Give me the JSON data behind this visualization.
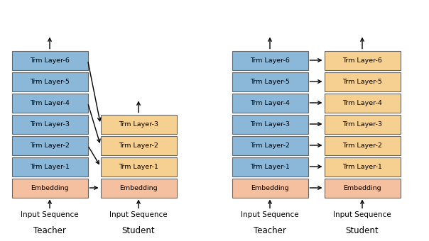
{
  "blue_color": "#8BB8D8",
  "orange_color": "#F5D090",
  "pink_color": "#F5C0A0",
  "box_edge_color": "#666666",
  "layers": [
    "Trm Layer-6",
    "Trm Layer-5",
    "Trm Layer-4",
    "Trm Layer-3",
    "Trm Layer-2",
    "Trm Layer-1"
  ],
  "embed_label": "Embedding",
  "input_label": "Input Sequence",
  "teacher_label": "Teacher",
  "student_label": "Student",
  "font_size": 6.8,
  "label_font_size": 7.5,
  "title_font_size": 8.5
}
